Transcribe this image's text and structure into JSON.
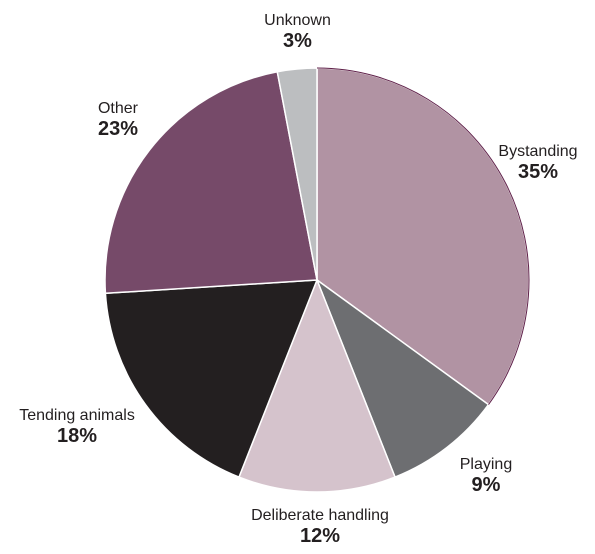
{
  "chart_data": {
    "type": "pie",
    "title": "",
    "start_angle_deg": 0,
    "direction": "clockwise",
    "slices": [
      {
        "label": "Bystanding",
        "value": 35,
        "value_label": "35%",
        "color": "#b193a3"
      },
      {
        "label": "Playing",
        "value": 9,
        "value_label": "9%",
        "color": "#6d6e71"
      },
      {
        "label": "Deliberate handling",
        "value": 12,
        "value_label": "12%",
        "color": "#d5c3cc"
      },
      {
        "label": "Tending animals",
        "value": 18,
        "value_label": "18%",
        "color": "#231f20"
      },
      {
        "label": "Other",
        "value": 23,
        "value_label": "23%",
        "color": "#764a69"
      },
      {
        "label": "Unknown",
        "value": 3,
        "value_label": "3%",
        "color": "#bcbec0"
      }
    ],
    "outline_color": "#5e1f48"
  }
}
